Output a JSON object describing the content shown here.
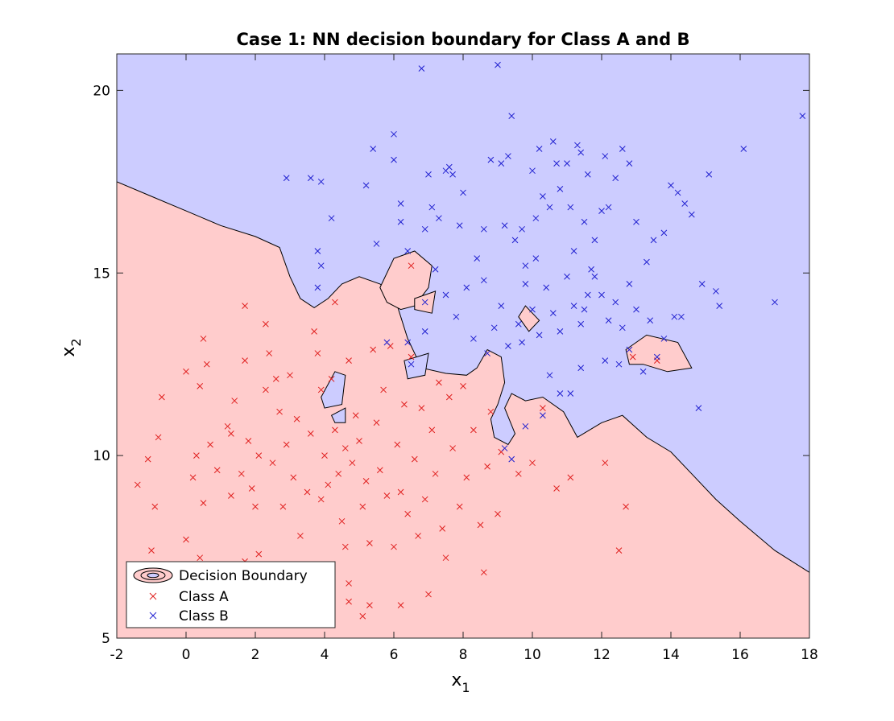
{
  "chart_data": {
    "type": "scatter",
    "title": "Case 1: NN decision boundary for Class A and B",
    "xlabel": "x",
    "xlabel_sub": "1",
    "ylabel": "x",
    "ylabel_sub": "2",
    "xlim": [
      -2,
      18
    ],
    "ylim": [
      5,
      21
    ],
    "xticks": [
      -2,
      0,
      2,
      4,
      6,
      8,
      10,
      12,
      14,
      16,
      18
    ],
    "yticks": [
      5,
      10,
      15,
      20
    ],
    "grid": false,
    "legend_position": "bottom-left",
    "legend": [
      {
        "label": "Decision Boundary",
        "kind": "contour"
      },
      {
        "label": "Class A",
        "kind": "marker",
        "color": "#e0201f"
      },
      {
        "label": "Class B",
        "kind": "marker",
        "color": "#2020d0"
      }
    ],
    "colors": {
      "region_a": "#ffcccc",
      "region_b": "#ccccff",
      "class_a": "#e0201f",
      "class_b": "#2020d0",
      "boundary": "#000000"
    },
    "boundary_main": [
      [
        -2,
        17.5
      ],
      [
        -1,
        17.1
      ],
      [
        0,
        16.7
      ],
      [
        1,
        16.3
      ],
      [
        2,
        16
      ],
      [
        2.7,
        15.7
      ],
      [
        3,
        14.9
      ],
      [
        3.3,
        14.3
      ],
      [
        3.7,
        14.05
      ],
      [
        4.1,
        14.3
      ],
      [
        4.5,
        14.7
      ],
      [
        5,
        14.9
      ],
      [
        5.6,
        14.7
      ],
      [
        6,
        14.4
      ],
      [
        6.2,
        13.8
      ],
      [
        6.4,
        13.2
      ],
      [
        6.8,
        12.4
      ],
      [
        7.5,
        12.25
      ],
      [
        8.1,
        12.2
      ],
      [
        8.4,
        12.4
      ],
      [
        8.7,
        12.9
      ],
      [
        9.1,
        12.7
      ],
      [
        9.2,
        12.0
      ],
      [
        9.0,
        11.4
      ],
      [
        8.8,
        11.0
      ],
      [
        8.9,
        10.5
      ],
      [
        9.3,
        10.3
      ],
      [
        9.5,
        10.6
      ],
      [
        9.2,
        11.3
      ],
      [
        9.4,
        11.7
      ],
      [
        9.8,
        11.5
      ],
      [
        10.3,
        11.6
      ],
      [
        10.9,
        11.2
      ],
      [
        11.3,
        10.5
      ],
      [
        12,
        10.9
      ],
      [
        12.6,
        11.1
      ],
      [
        13.3,
        10.5
      ],
      [
        14,
        10.1
      ],
      [
        14.6,
        9.5
      ],
      [
        15.3,
        8.8
      ],
      [
        16,
        8.2
      ],
      [
        17,
        7.4
      ],
      [
        18,
        6.8
      ]
    ],
    "islands_a": [
      [
        [
          5.6,
          14.6
        ],
        [
          6,
          15.4
        ],
        [
          6.6,
          15.6
        ],
        [
          7.1,
          15.2
        ],
        [
          7.0,
          14.6
        ],
        [
          6.6,
          14.1
        ],
        [
          6.2,
          14.0
        ],
        [
          5.8,
          14.2
        ]
      ],
      [
        [
          6.6,
          14.3
        ],
        [
          7.2,
          14.5
        ],
        [
          7.1,
          13.9
        ],
        [
          6.6,
          14.0
        ]
      ],
      [
        [
          9.8,
          14.1
        ],
        [
          10.2,
          13.7
        ],
        [
          9.9,
          13.4
        ],
        [
          9.6,
          13.8
        ]
      ],
      [
        [
          12.7,
          12.9
        ],
        [
          13.3,
          13.3
        ],
        [
          14.2,
          13.1
        ],
        [
          14.6,
          12.4
        ],
        [
          13.9,
          12.3
        ],
        [
          13.2,
          12.5
        ],
        [
          12.8,
          12.5
        ]
      ]
    ],
    "islands_b": [
      [
        [
          3.9,
          11.6
        ],
        [
          4.3,
          12.3
        ],
        [
          4.6,
          12.2
        ],
        [
          4.5,
          11.4
        ],
        [
          4.0,
          11.3
        ]
      ],
      [
        [
          4.2,
          11.1
        ],
        [
          4.6,
          11.3
        ],
        [
          4.6,
          10.9
        ],
        [
          4.3,
          10.9
        ]
      ],
      [
        [
          6.3,
          12.6
        ],
        [
          7.0,
          12.8
        ],
        [
          6.9,
          12.2
        ],
        [
          6.4,
          12.1
        ]
      ]
    ],
    "class_a": [
      [
        -1.4,
        9.2
      ],
      [
        -1.1,
        9.9
      ],
      [
        -0.9,
        8.6
      ],
      [
        -0.8,
        10.5
      ],
      [
        -0.7,
        11.6
      ],
      [
        0,
        12.3
      ],
      [
        0,
        7.7
      ],
      [
        0.2,
        9.4
      ],
      [
        0.3,
        10
      ],
      [
        0.4,
        11.9
      ],
      [
        0.4,
        7.2
      ],
      [
        0.5,
        13.2
      ],
      [
        0.5,
        8.7
      ],
      [
        0.6,
        12.5
      ],
      [
        0.7,
        10.3
      ],
      [
        0.9,
        9.6
      ],
      [
        1.2,
        10.8
      ],
      [
        1.3,
        10.6
      ],
      [
        1.3,
        8.9
      ],
      [
        1.4,
        11.5
      ],
      [
        1.6,
        9.5
      ],
      [
        1.7,
        14.1
      ],
      [
        1.7,
        12.6
      ],
      [
        1.8,
        10.4
      ],
      [
        1.9,
        9.1
      ],
      [
        2,
        8.6
      ],
      [
        2.1,
        10.0
      ],
      [
        2.1,
        7.3
      ],
      [
        2.3,
        11.8
      ],
      [
        2.3,
        13.6
      ],
      [
        2.4,
        12.8
      ],
      [
        2.5,
        9.8
      ],
      [
        2.6,
        12.1
      ],
      [
        2.7,
        11.2
      ],
      [
        2.8,
        8.6
      ],
      [
        2.9,
        10.3
      ],
      [
        3,
        12.2
      ],
      [
        3.1,
        9.4
      ],
      [
        3.2,
        11.0
      ],
      [
        3.3,
        7.8
      ],
      [
        3.5,
        9.0
      ],
      [
        3.6,
        10.6
      ],
      [
        3.7,
        13.4
      ],
      [
        3.8,
        12.8
      ],
      [
        3.9,
        11.8
      ],
      [
        3.9,
        8.8
      ],
      [
        4,
        10.0
      ],
      [
        4.1,
        9.2
      ],
      [
        4.2,
        12.1
      ],
      [
        4.3,
        10.7
      ],
      [
        4.3,
        14.2
      ],
      [
        4.4,
        9.5
      ],
      [
        4.5,
        8.2
      ],
      [
        4.6,
        10.2
      ],
      [
        4.6,
        7.5
      ],
      [
        4.7,
        6.5
      ],
      [
        4.7,
        12.6
      ],
      [
        4.8,
        9.8
      ],
      [
        4.9,
        11.1
      ],
      [
        5,
        10.4
      ],
      [
        5.1,
        8.6
      ],
      [
        5.2,
        9.3
      ],
      [
        5.3,
        7.6
      ],
      [
        5.4,
        12.9
      ],
      [
        5.5,
        10.9
      ],
      [
        5.6,
        9.6
      ],
      [
        5.7,
        11.8
      ],
      [
        5.8,
        8.9
      ],
      [
        5.9,
        13.0
      ],
      [
        6,
        7.5
      ],
      [
        6.1,
        10.3
      ],
      [
        6.2,
        9.0
      ],
      [
        6.3,
        11.4
      ],
      [
        6.4,
        8.4
      ],
      [
        6.5,
        12.7
      ],
      [
        6.6,
        9.9
      ],
      [
        6.7,
        7.8
      ],
      [
        6.8,
        11.3
      ],
      [
        6.9,
        8.8
      ],
      [
        7,
        6.2
      ],
      [
        7.1,
        10.7
      ],
      [
        7.2,
        9.5
      ],
      [
        7.3,
        12.0
      ],
      [
        7.4,
        8.0
      ],
      [
        7.5,
        7.2
      ],
      [
        7.6,
        11.6
      ],
      [
        7.7,
        10.2
      ],
      [
        7.9,
        8.6
      ],
      [
        8,
        11.9
      ],
      [
        8.1,
        9.4
      ],
      [
        8.3,
        10.7
      ],
      [
        8.5,
        8.1
      ],
      [
        8.6,
        6.8
      ],
      [
        8.7,
        9.7
      ],
      [
        8.8,
        11.2
      ],
      [
        9,
        8.4
      ],
      [
        9.1,
        10.1
      ],
      [
        9.6,
        9.5
      ],
      [
        10,
        9.8
      ],
      [
        10.3,
        11.3
      ],
      [
        10.7,
        9.1
      ],
      [
        11.1,
        9.4
      ],
      [
        12.1,
        9.8
      ],
      [
        12.5,
        7.4
      ],
      [
        12.7,
        8.6
      ],
      [
        12.9,
        12.7
      ],
      [
        13.6,
        12.6
      ],
      [
        6.5,
        15.2
      ],
      [
        5.1,
        5.6
      ],
      [
        6.2,
        5.9
      ],
      [
        4.7,
        6.0
      ],
      [
        5.3,
        5.9
      ],
      [
        3.6,
        6.8
      ],
      [
        2.9,
        7.0
      ],
      [
        1.7,
        7.1
      ],
      [
        0.8,
        6.9
      ],
      [
        -1,
        7.4
      ]
    ],
    "class_b": [
      [
        2.9,
        17.6
      ],
      [
        3.6,
        17.6
      ],
      [
        3.9,
        17.5
      ],
      [
        3.8,
        15.6
      ],
      [
        3.9,
        15.2
      ],
      [
        3.8,
        14.6
      ],
      [
        4.2,
        16.5
      ],
      [
        5.2,
        17.4
      ],
      [
        5.4,
        18.4
      ],
      [
        5.5,
        15.8
      ],
      [
        6,
        18.8
      ],
      [
        6,
        18.1
      ],
      [
        6.2,
        16.9
      ],
      [
        6.2,
        16.4
      ],
      [
        6.4,
        15.6
      ],
      [
        6.8,
        20.6
      ],
      [
        6.9,
        16.2
      ],
      [
        7,
        17.7
      ],
      [
        7.1,
        16.8
      ],
      [
        7.3,
        16.5
      ],
      [
        7.5,
        17.8
      ],
      [
        7.6,
        17.9
      ],
      [
        7.7,
        17.7
      ],
      [
        7.9,
        16.3
      ],
      [
        8,
        17.2
      ],
      [
        8.4,
        15.4
      ],
      [
        8.6,
        16.2
      ],
      [
        8.8,
        18.1
      ],
      [
        9,
        20.7
      ],
      [
        9.1,
        18.0
      ],
      [
        9.2,
        16.3
      ],
      [
        9.3,
        18.2
      ],
      [
        9.4,
        19.3
      ],
      [
        9.5,
        15.9
      ],
      [
        9.7,
        16.2
      ],
      [
        9.8,
        15.2
      ],
      [
        10,
        17.8
      ],
      [
        10.1,
        16.5
      ],
      [
        10.2,
        18.4
      ],
      [
        10.3,
        17.1
      ],
      [
        10.5,
        16.8
      ],
      [
        10.6,
        18.6
      ],
      [
        10.7,
        18.0
      ],
      [
        10.8,
        17.3
      ],
      [
        11,
        18.0
      ],
      [
        11.1,
        16.8
      ],
      [
        11.2,
        15.6
      ],
      [
        11.3,
        18.5
      ],
      [
        11.4,
        18.3
      ],
      [
        11.5,
        16.4
      ],
      [
        11.6,
        17.7
      ],
      [
        11.8,
        15.9
      ],
      [
        12,
        16.7
      ],
      [
        12.1,
        18.2
      ],
      [
        12.2,
        16.8
      ],
      [
        12.4,
        17.6
      ],
      [
        12.6,
        18.4
      ],
      [
        12.8,
        18.0
      ],
      [
        13,
        16.4
      ],
      [
        13.3,
        15.3
      ],
      [
        13.5,
        15.9
      ],
      [
        13.8,
        16.1
      ],
      [
        14,
        17.4
      ],
      [
        14.2,
        17.2
      ],
      [
        14.4,
        16.9
      ],
      [
        14.6,
        16.6
      ],
      [
        14.9,
        14.7
      ],
      [
        15.1,
        17.7
      ],
      [
        15.3,
        14.5
      ],
      [
        15.4,
        14.1
      ],
      [
        16.1,
        18.4
      ],
      [
        17,
        14.2
      ],
      [
        17.8,
        19.3
      ],
      [
        7.2,
        15.1
      ],
      [
        7.5,
        14.4
      ],
      [
        7.8,
        13.8
      ],
      [
        8.1,
        14.6
      ],
      [
        8.3,
        13.2
      ],
      [
        8.6,
        14.8
      ],
      [
        8.9,
        13.5
      ],
      [
        9.1,
        14.1
      ],
      [
        9.3,
        13.0
      ],
      [
        9.6,
        13.6
      ],
      [
        9.8,
        14.7
      ],
      [
        10,
        14.0
      ],
      [
        10.2,
        13.3
      ],
      [
        10.4,
        14.6
      ],
      [
        10.6,
        13.9
      ],
      [
        10.8,
        13.4
      ],
      [
        11,
        14.9
      ],
      [
        11.2,
        14.1
      ],
      [
        11.4,
        13.6
      ],
      [
        11.6,
        14.4
      ],
      [
        11.8,
        14.9
      ],
      [
        12,
        14.4
      ],
      [
        12.2,
        13.7
      ],
      [
        12.4,
        14.2
      ],
      [
        12.6,
        13.5
      ],
      [
        12.8,
        14.7
      ],
      [
        13,
        14.0
      ],
      [
        13.2,
        12.3
      ],
      [
        13.4,
        13.7
      ],
      [
        13.6,
        12.7
      ],
      [
        13.8,
        13.2
      ],
      [
        14.1,
        13.8
      ],
      [
        14.3,
        13.8
      ],
      [
        14.8,
        11.3
      ],
      [
        10.5,
        12.2
      ],
      [
        10.8,
        11.7
      ],
      [
        11.1,
        11.7
      ],
      [
        11.4,
        12.4
      ],
      [
        12.1,
        12.6
      ],
      [
        12.5,
        12.5
      ],
      [
        12.8,
        12.9
      ],
      [
        9.2,
        10.2
      ],
      [
        9.4,
        9.9
      ],
      [
        9.8,
        10.8
      ],
      [
        10.3,
        11.1
      ],
      [
        6.5,
        12.5
      ],
      [
        6.4,
        13.1
      ],
      [
        6.9,
        14.2
      ],
      [
        5.8,
        13.1
      ],
      [
        8.7,
        12.8
      ],
      [
        11.5,
        14.0
      ],
      [
        10.1,
        15.4
      ],
      [
        11.7,
        15.1
      ],
      [
        9.7,
        13.1
      ],
      [
        6.9,
        13.4
      ]
    ]
  }
}
